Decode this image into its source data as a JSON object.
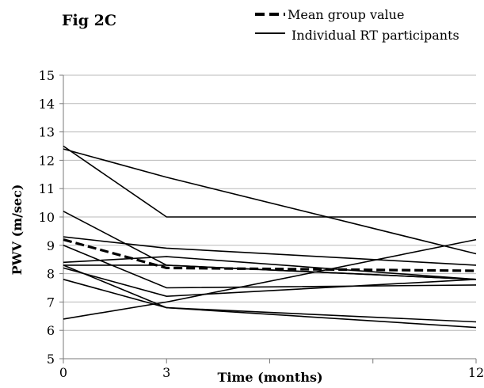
{
  "figure_label": "Fig 2C",
  "chart_data": {
    "type": "line",
    "title": "",
    "xlabel": "Time (months)",
    "ylabel": "PWV  (m/sec)",
    "x": [
      0,
      3,
      12
    ],
    "x_tick_labels": [
      "0",
      "3",
      "12"
    ],
    "xlim": [
      0,
      12
    ],
    "ylim": [
      5,
      15
    ],
    "y_ticks": [
      5,
      6,
      7,
      8,
      9,
      10,
      11,
      12,
      13,
      14,
      15
    ],
    "grid": "horizontal",
    "legend_position": "top-right",
    "legend": [
      {
        "label": "Mean group value",
        "style": "dashed"
      },
      {
        "label": "Individual RT participants",
        "style": "solid"
      }
    ],
    "series": [
      {
        "name": "Mean group value",
        "style": "dashed",
        "values": [
          9.2,
          8.2,
          8.1
        ]
      },
      {
        "style": "solid",
        "values": [
          12.5,
          10.0,
          10.0
        ]
      },
      {
        "style": "solid",
        "values": [
          12.4,
          11.4,
          8.7
        ]
      },
      {
        "style": "solid",
        "values": [
          10.2,
          8.3,
          7.8
        ]
      },
      {
        "style": "solid",
        "values": [
          9.3,
          8.9,
          8.3
        ]
      },
      {
        "style": "solid",
        "values": [
          9.0,
          7.5,
          7.6
        ]
      },
      {
        "style": "solid",
        "values": [
          8.4,
          8.6,
          7.8
        ]
      },
      {
        "style": "solid",
        "values": [
          8.3,
          8.3,
          7.8
        ]
      },
      {
        "style": "solid",
        "values": [
          8.3,
          6.8,
          6.1
        ]
      },
      {
        "style": "solid",
        "values": [
          8.2,
          7.2,
          7.8
        ]
      },
      {
        "style": "solid",
        "values": [
          7.8,
          6.8,
          6.3
        ]
      },
      {
        "style": "solid",
        "values": [
          6.4,
          7.0,
          9.2
        ]
      }
    ]
  }
}
